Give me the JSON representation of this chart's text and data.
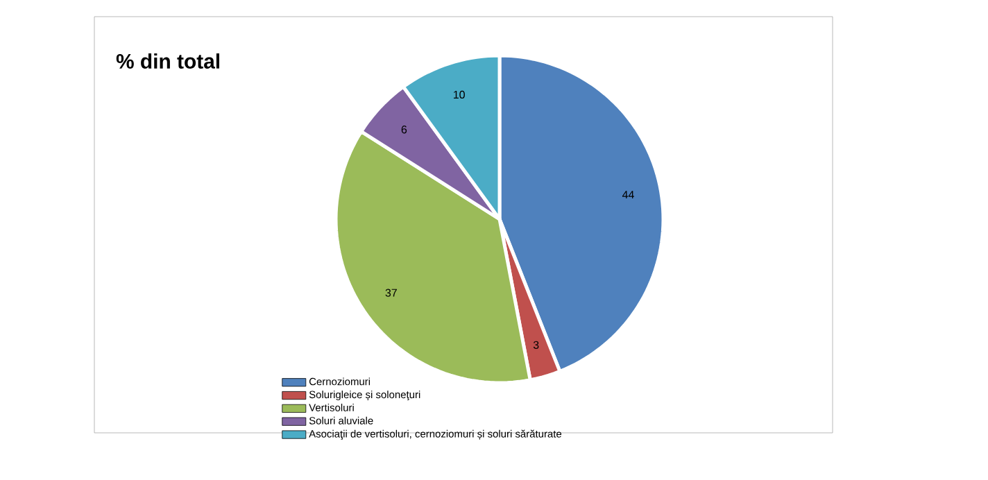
{
  "chart_data": {
    "type": "pie",
    "title": "% din total",
    "categories": [
      "Cernoziomuri",
      "Solurigleice și soloneţuri",
      "Vertisoluri",
      "Soluri aluviale",
      "Asociaţii de vertisoluri, cernoziomuri și soluri sărăturate"
    ],
    "values": [
      44,
      3,
      37,
      6,
      10
    ],
    "colors": [
      "#4f81bd",
      "#c0504d",
      "#9bbb59",
      "#8064a2",
      "#4bacc6"
    ],
    "data_labels": true,
    "legend": "bottom left"
  }
}
